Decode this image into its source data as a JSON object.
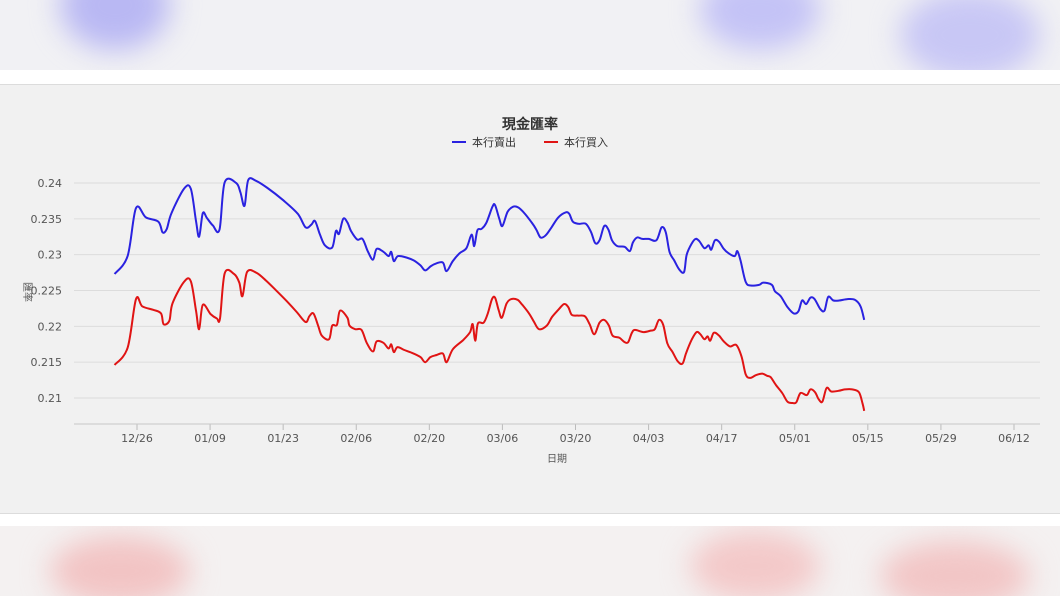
{
  "chart_data": {
    "type": "line",
    "title": "現金匯率",
    "xlabel": "日期",
    "ylabel": "匯率",
    "ylim": [
      0.206,
      0.2425
    ],
    "yticks": [
      "0.24",
      "0.235",
      "0.23",
      "0.225",
      "0.22",
      "0.215",
      "0.21"
    ],
    "xticks": [
      "12/26",
      "01/09",
      "01/23",
      "02/06",
      "02/20",
      "03/06",
      "03/20",
      "04/03",
      "04/17",
      "05/01",
      "05/15",
      "05/29",
      "06/12"
    ],
    "grid": true,
    "legend_position": "top-center",
    "series": [
      {
        "name": "本行賣出",
        "color": "#2a22e0",
        "points": [
          [
            -4.3,
            0.2273
          ],
          [
            -1.8,
            0.2298
          ],
          [
            -0.2,
            0.2365
          ],
          [
            1.7,
            0.2352
          ],
          [
            4.1,
            0.2346
          ],
          [
            4.9,
            0.2331
          ],
          [
            5.7,
            0.2336
          ],
          [
            6.6,
            0.2358
          ],
          [
            9.0,
            0.2392
          ],
          [
            10.3,
            0.2392
          ],
          [
            11.3,
            0.2347
          ],
          [
            11.9,
            0.2325
          ],
          [
            12.6,
            0.2358
          ],
          [
            13.4,
            0.2351
          ],
          [
            14.5,
            0.2341
          ],
          [
            15.8,
            0.2335
          ],
          [
            16.8,
            0.2401
          ],
          [
            19.0,
            0.24
          ],
          [
            19.8,
            0.2387
          ],
          [
            20.6,
            0.2368
          ],
          [
            21.3,
            0.2404
          ],
          [
            22.8,
            0.2403
          ],
          [
            25.0,
            0.2393
          ],
          [
            28.0,
            0.2376
          ],
          [
            30.8,
            0.2357
          ],
          [
            32.3,
            0.2338
          ],
          [
            33.4,
            0.2342
          ],
          [
            34.1,
            0.2347
          ],
          [
            35.0,
            0.2329
          ],
          [
            36.0,
            0.2313
          ],
          [
            37.4,
            0.231
          ],
          [
            38.1,
            0.2333
          ],
          [
            38.7,
            0.2329
          ],
          [
            39.5,
            0.235
          ],
          [
            40.3,
            0.2345
          ],
          [
            41.0,
            0.2333
          ],
          [
            42.2,
            0.2321
          ],
          [
            43.2,
            0.2322
          ],
          [
            44.2,
            0.2305
          ],
          [
            45.2,
            0.2293
          ],
          [
            45.9,
            0.2308
          ],
          [
            47.2,
            0.2304
          ],
          [
            48.2,
            0.2298
          ],
          [
            48.7,
            0.2304
          ],
          [
            49.2,
            0.2291
          ],
          [
            50.0,
            0.2298
          ],
          [
            51.6,
            0.2296
          ],
          [
            53.0,
            0.2292
          ],
          [
            54.3,
            0.2285
          ],
          [
            55.2,
            0.2278
          ],
          [
            56.3,
            0.2284
          ],
          [
            57.4,
            0.2288
          ],
          [
            58.6,
            0.2289
          ],
          [
            59.3,
            0.2277
          ],
          [
            60.5,
            0.2291
          ],
          [
            61.8,
            0.2302
          ],
          [
            63.1,
            0.2309
          ],
          [
            64.1,
            0.2328
          ],
          [
            64.6,
            0.2312
          ],
          [
            65.2,
            0.2334
          ],
          [
            66.0,
            0.2336
          ],
          [
            66.9,
            0.2344
          ],
          [
            68.1,
            0.2367
          ],
          [
            68.6,
            0.2369
          ],
          [
            69.4,
            0.235
          ],
          [
            70.0,
            0.234
          ],
          [
            71.0,
            0.236
          ],
          [
            72.1,
            0.2367
          ],
          [
            73.0,
            0.2366
          ],
          [
            74.2,
            0.2358
          ],
          [
            75.6,
            0.2345
          ],
          [
            76.5,
            0.2335
          ],
          [
            77.3,
            0.2324
          ],
          [
            78.3,
            0.2327
          ],
          [
            79.4,
            0.2338
          ],
          [
            80.7,
            0.2352
          ],
          [
            82.1,
            0.2359
          ],
          [
            82.8,
            0.2357
          ],
          [
            83.5,
            0.2346
          ],
          [
            84.6,
            0.2343
          ],
          [
            86.0,
            0.2343
          ],
          [
            87.0,
            0.2331
          ],
          [
            87.8,
            0.2316
          ],
          [
            88.6,
            0.232
          ],
          [
            89.5,
            0.234
          ],
          [
            90.3,
            0.2335
          ],
          [
            91.0,
            0.232
          ],
          [
            92.0,
            0.2312
          ],
          [
            93.4,
            0.2311
          ],
          [
            94.4,
            0.2305
          ],
          [
            95.0,
            0.2317
          ],
          [
            95.8,
            0.2324
          ],
          [
            96.8,
            0.2322
          ],
          [
            98.0,
            0.2322
          ],
          [
            99.5,
            0.232
          ],
          [
            100.5,
            0.2338
          ],
          [
            101.3,
            0.2331
          ],
          [
            102.0,
            0.2304
          ],
          [
            102.9,
            0.2292
          ],
          [
            103.9,
            0.2279
          ],
          [
            104.8,
            0.2276
          ],
          [
            105.3,
            0.23
          ],
          [
            106.3,
            0.2316
          ],
          [
            107.0,
            0.2322
          ],
          [
            107.7,
            0.2319
          ],
          [
            108.7,
            0.2309
          ],
          [
            109.5,
            0.2313
          ],
          [
            110.0,
            0.2307
          ],
          [
            110.7,
            0.232
          ],
          [
            111.5,
            0.2318
          ],
          [
            112.4,
            0.2308
          ],
          [
            113.3,
            0.2302
          ],
          [
            114.5,
            0.2298
          ],
          [
            115.0,
            0.2305
          ],
          [
            115.6,
            0.2292
          ],
          [
            116.6,
            0.2262
          ],
          [
            117.6,
            0.2257
          ],
          [
            119.2,
            0.2258
          ],
          [
            120.0,
            0.2261
          ],
          [
            121.6,
            0.2258
          ],
          [
            122.2,
            0.2249
          ],
          [
            123.3,
            0.2242
          ],
          [
            124.6,
            0.2227
          ],
          [
            125.8,
            0.2218
          ],
          [
            126.7,
            0.2221
          ],
          [
            127.4,
            0.2236
          ],
          [
            128.2,
            0.2231
          ],
          [
            129.0,
            0.224
          ],
          [
            129.8,
            0.2238
          ],
          [
            130.9,
            0.2224
          ],
          [
            131.7,
            0.2222
          ],
          [
            132.4,
            0.2241
          ],
          [
            133.4,
            0.2236
          ],
          [
            134.5,
            0.2236
          ],
          [
            136.1,
            0.2238
          ],
          [
            137.5,
            0.2237
          ],
          [
            138.6,
            0.2228
          ],
          [
            139.3,
            0.2209
          ]
        ]
      },
      {
        "name": "本行買入",
        "color": "#e01414",
        "points": [
          [
            -4.3,
            0.2146
          ],
          [
            -1.8,
            0.217
          ],
          [
            -0.2,
            0.2238
          ],
          [
            1.0,
            0.2228
          ],
          [
            3.1,
            0.2223
          ],
          [
            4.6,
            0.2218
          ],
          [
            5.1,
            0.2203
          ],
          [
            6.2,
            0.2208
          ],
          [
            6.8,
            0.2232
          ],
          [
            9.0,
            0.2262
          ],
          [
            10.3,
            0.2263
          ],
          [
            11.3,
            0.2222
          ],
          [
            11.9,
            0.2196
          ],
          [
            12.6,
            0.223
          ],
          [
            14.1,
            0.2217
          ],
          [
            15.3,
            0.2211
          ],
          [
            15.9,
            0.2211
          ],
          [
            16.8,
            0.2274
          ],
          [
            18.6,
            0.2273
          ],
          [
            19.6,
            0.2261
          ],
          [
            20.2,
            0.2242
          ],
          [
            21.1,
            0.2276
          ],
          [
            22.8,
            0.2275
          ],
          [
            24.7,
            0.2264
          ],
          [
            26.8,
            0.2249
          ],
          [
            28.7,
            0.2235
          ],
          [
            30.6,
            0.222
          ],
          [
            32.3,
            0.2206
          ],
          [
            33.0,
            0.2214
          ],
          [
            33.8,
            0.2218
          ],
          [
            34.7,
            0.2201
          ],
          [
            35.4,
            0.2187
          ],
          [
            36.8,
            0.2182
          ],
          [
            37.4,
            0.2201
          ],
          [
            38.3,
            0.2202
          ],
          [
            38.9,
            0.2222
          ],
          [
            40.3,
            0.2212
          ],
          [
            40.7,
            0.2201
          ],
          [
            41.8,
            0.2196
          ],
          [
            43.0,
            0.2195
          ],
          [
            44.0,
            0.2177
          ],
          [
            45.2,
            0.2165
          ],
          [
            45.9,
            0.2179
          ],
          [
            47.2,
            0.2177
          ],
          [
            48.2,
            0.2169
          ],
          [
            48.7,
            0.2175
          ],
          [
            49.2,
            0.2164
          ],
          [
            49.9,
            0.2171
          ],
          [
            51.2,
            0.2167
          ],
          [
            52.7,
            0.2163
          ],
          [
            54.3,
            0.2157
          ],
          [
            55.2,
            0.215
          ],
          [
            56.2,
            0.2157
          ],
          [
            57.4,
            0.216
          ],
          [
            58.6,
            0.2162
          ],
          [
            59.3,
            0.215
          ],
          [
            60.5,
            0.2168
          ],
          [
            62.5,
            0.2181
          ],
          [
            63.8,
            0.2192
          ],
          [
            64.3,
            0.2203
          ],
          [
            64.8,
            0.218
          ],
          [
            65.3,
            0.2204
          ],
          [
            66.4,
            0.2205
          ],
          [
            67.2,
            0.2218
          ],
          [
            68.0,
            0.2238
          ],
          [
            68.6,
            0.224
          ],
          [
            69.3,
            0.2222
          ],
          [
            69.9,
            0.2212
          ],
          [
            70.8,
            0.2232
          ],
          [
            71.7,
            0.2238
          ],
          [
            72.9,
            0.2237
          ],
          [
            73.8,
            0.223
          ],
          [
            75.1,
            0.2218
          ],
          [
            76.0,
            0.2207
          ],
          [
            77.0,
            0.2196
          ],
          [
            78.5,
            0.2201
          ],
          [
            79.5,
            0.2213
          ],
          [
            80.7,
            0.2223
          ],
          [
            81.8,
            0.2231
          ],
          [
            82.6,
            0.2227
          ],
          [
            83.3,
            0.2216
          ],
          [
            84.5,
            0.2215
          ],
          [
            85.8,
            0.2214
          ],
          [
            86.7,
            0.2203
          ],
          [
            87.6,
            0.2189
          ],
          [
            88.6,
            0.2205
          ],
          [
            89.5,
            0.2209
          ],
          [
            90.4,
            0.2201
          ],
          [
            91.1,
            0.2187
          ],
          [
            92.4,
            0.2184
          ],
          [
            93.4,
            0.2178
          ],
          [
            94.1,
            0.2178
          ],
          [
            94.8,
            0.2191
          ],
          [
            95.4,
            0.2195
          ],
          [
            97.0,
            0.2192
          ],
          [
            98.4,
            0.2194
          ],
          [
            99.2,
            0.2196
          ],
          [
            100.0,
            0.2209
          ],
          [
            100.8,
            0.2202
          ],
          [
            101.6,
            0.2176
          ],
          [
            102.6,
            0.2164
          ],
          [
            103.6,
            0.2151
          ],
          [
            104.5,
            0.2148
          ],
          [
            105.2,
            0.2163
          ],
          [
            106.3,
            0.2182
          ],
          [
            107.2,
            0.2192
          ],
          [
            107.9,
            0.2189
          ],
          [
            108.7,
            0.2182
          ],
          [
            109.3,
            0.2186
          ],
          [
            109.8,
            0.218
          ],
          [
            110.5,
            0.2191
          ],
          [
            111.5,
            0.2187
          ],
          [
            112.4,
            0.2179
          ],
          [
            113.6,
            0.2172
          ],
          [
            114.8,
            0.2174
          ],
          [
            115.8,
            0.2158
          ],
          [
            116.6,
            0.2133
          ],
          [
            117.4,
            0.2128
          ],
          [
            118.6,
            0.2132
          ],
          [
            119.8,
            0.2134
          ],
          [
            120.7,
            0.2131
          ],
          [
            121.4,
            0.2129
          ],
          [
            122.4,
            0.2118
          ],
          [
            123.6,
            0.2107
          ],
          [
            124.6,
            0.2095
          ],
          [
            125.6,
            0.2093
          ],
          [
            126.3,
            0.2094
          ],
          [
            127.1,
            0.2107
          ],
          [
            128.3,
            0.2104
          ],
          [
            129.0,
            0.2112
          ],
          [
            129.9,
            0.2108
          ],
          [
            130.6,
            0.2098
          ],
          [
            131.3,
            0.2095
          ],
          [
            132.1,
            0.2114
          ],
          [
            133.0,
            0.2109
          ],
          [
            134.4,
            0.211
          ],
          [
            135.6,
            0.2112
          ],
          [
            137.0,
            0.2112
          ],
          [
            138.3,
            0.2108
          ],
          [
            139.0,
            0.2092
          ],
          [
            139.3,
            0.2082
          ]
        ]
      }
    ]
  }
}
